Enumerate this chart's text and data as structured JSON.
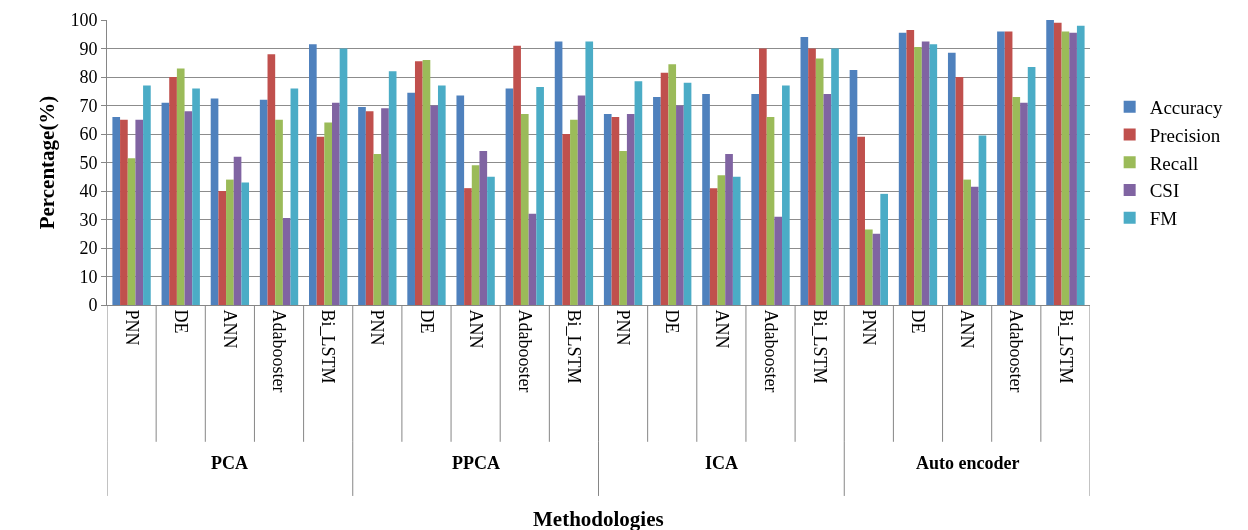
{
  "chart_data": {
    "type": "bar",
    "ylabel": "Percentage(%)",
    "categories": [
      "PNN",
      "DE",
      "ANN",
      "Adabooster",
      "Bi_LSTM",
      "PNN",
      "DE",
      "ANN",
      "Adabooster",
      "Bi_LSTM",
      "PNN",
      "DE",
      "ANN",
      "Adabooster",
      "Bi_LSTM",
      "PNN",
      "DE",
      "ANN",
      "Adabooster",
      "Bi_LSTM"
    ],
    "annotations": [
      "PCA",
      "PPCA",
      "ICA",
      "Auto encoder",
      "Methodologies"
    ],
    "series": [
      {
        "name": "Accuracy",
        "color": "#4f81bd",
        "values": [
          66,
          71,
          72.5,
          72,
          91.5,
          69.5,
          74.5,
          73.5,
          76,
          92.5,
          67,
          73,
          74,
          74,
          94,
          82.5,
          95.5,
          88.5,
          96,
          100
        ]
      },
      {
        "name": "Precision",
        "color": "#c0504d",
        "values": [
          65,
          80,
          40,
          88,
          59,
          68,
          85.5,
          41,
          91,
          60,
          66,
          81.5,
          41,
          90,
          90,
          59,
          96.5,
          80,
          96,
          99
        ]
      },
      {
        "name": "Recall",
        "color": "#9bbb59",
        "values": [
          51.5,
          83,
          44,
          65,
          64,
          53,
          86,
          49,
          67,
          65,
          54,
          84.5,
          45.5,
          66,
          86.5,
          26.5,
          90.5,
          44,
          73,
          96
        ]
      },
      {
        "name": "CSI",
        "color": "#8064a2",
        "values": [
          65,
          68,
          52,
          30.5,
          71,
          69,
          70,
          54,
          32,
          73.5,
          67,
          70,
          53,
          31,
          74,
          25,
          92.5,
          41.5,
          71,
          95.5
        ]
      },
      {
        "name": "FM",
        "color": "#4bacc6",
        "values": [
          77,
          76,
          43,
          76,
          90,
          82,
          77,
          45,
          76.5,
          92.5,
          78.5,
          78,
          45,
          77,
          90,
          39,
          91.5,
          59.5,
          83.5,
          98
        ]
      }
    ],
    "ylim": [
      0,
      100
    ],
    "yticks": [
      0,
      10,
      20,
      30,
      40,
      50,
      60,
      70,
      80,
      90,
      100
    ],
    "grid": "y",
    "legend": "right"
  }
}
